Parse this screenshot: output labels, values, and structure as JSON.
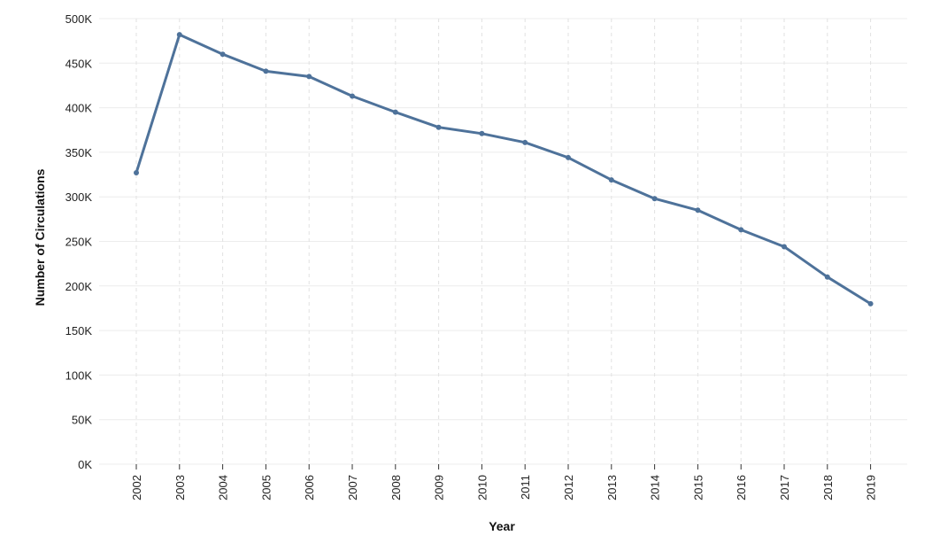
{
  "chart_data": {
    "type": "line",
    "title": "",
    "xlabel": "Year",
    "ylabel": "Number of Circulations",
    "x": [
      "2002",
      "2003",
      "2004",
      "2005",
      "2006",
      "2007",
      "2008",
      "2009",
      "2010",
      "2011",
      "2012",
      "2013",
      "2014",
      "2015",
      "2016",
      "2017",
      "2018",
      "2019"
    ],
    "series": [
      {
        "values": [
          327000,
          482000,
          460000,
          441000,
          435000,
          413000,
          395000,
          378000,
          371000,
          361000,
          344000,
          319000,
          298000,
          285000,
          263000,
          244000,
          210000,
          180000
        ]
      }
    ],
    "yticks": [
      0,
      50000,
      100000,
      150000,
      200000,
      250000,
      300000,
      350000,
      400000,
      450000,
      500000
    ],
    "ytick_labels": [
      "0K",
      "50K",
      "100K",
      "150K",
      "200K",
      "250K",
      "300K",
      "350K",
      "400K",
      "450K",
      "500K"
    ],
    "ylim": [
      0,
      500000
    ],
    "grid": true,
    "legend": "none",
    "colors": {
      "line": "#4e729a",
      "text": "#222222"
    }
  }
}
